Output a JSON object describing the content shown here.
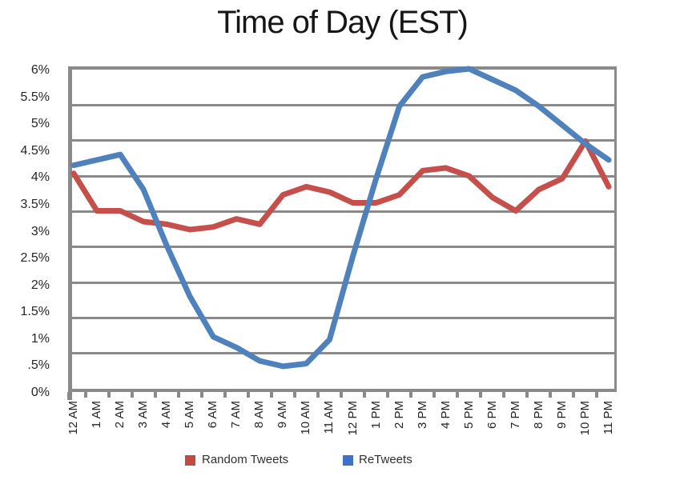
{
  "title": "Time of Day (EST)",
  "legend": {
    "items": [
      {
        "label": "Random Tweets",
        "swatch_color": "#c34a42"
      },
      {
        "label": "ReTweets",
        "swatch_color": "#3d72c6"
      }
    ]
  },
  "chart_data": {
    "type": "line",
    "title": "Time of Day (EST)",
    "xlabel": "",
    "ylabel": "",
    "ylim": [
      0,
      6
    ],
    "grid": "on",
    "grid_color": "#8a8a8a",
    "legend_position": "bottom",
    "y_tick_labels": [
      "6%",
      "5.5%",
      "5%",
      "4.5%",
      "4%",
      "3.5%",
      "3%",
      "2.5%",
      "2%",
      "1.5%",
      "1%",
      ".5%",
      "0%"
    ],
    "categories": [
      "12 AM",
      "1 AM",
      "2 AM",
      "3 AM",
      "4 AM",
      "5 AM",
      "6 AM",
      "7 AM",
      "8 AM",
      "9 AM",
      "10 AM",
      "11 AM",
      "12 PM",
      "1 PM",
      "2 PM",
      "3 PM",
      "4 PM",
      "5 PM",
      "6 PM",
      "7 PM",
      "8 PM",
      "9 PM",
      "10 PM",
      "11 PM"
    ],
    "series": [
      {
        "name": "Random Tweets",
        "color": "#c5504b",
        "values": [
          4.05,
          3.35,
          3.35,
          3.15,
          3.1,
          3.0,
          3.05,
          3.2,
          3.1,
          3.65,
          3.8,
          3.7,
          3.5,
          3.5,
          3.65,
          4.1,
          4.15,
          4.0,
          3.6,
          3.35,
          3.75,
          3.95,
          4.65,
          3.8
        ]
      },
      {
        "name": "ReTweets",
        "color": "#4f81bd",
        "values": [
          4.2,
          4.3,
          4.4,
          3.75,
          2.7,
          1.75,
          1.0,
          0.8,
          0.55,
          0.45,
          0.5,
          0.95,
          2.5,
          3.95,
          5.3,
          5.85,
          5.95,
          6.0,
          5.8,
          5.6,
          5.3,
          4.95,
          4.6,
          4.3
        ]
      }
    ]
  }
}
